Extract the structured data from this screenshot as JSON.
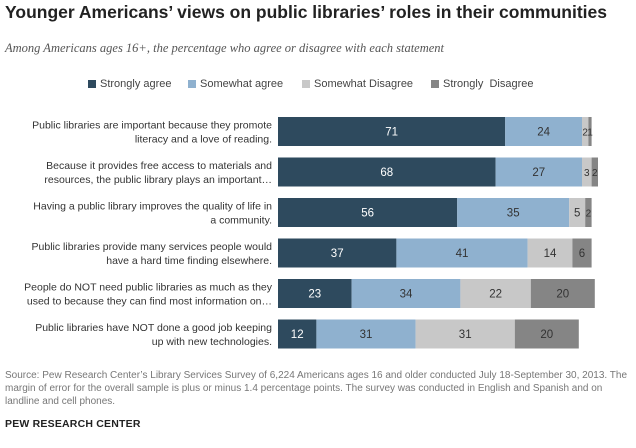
{
  "header": {
    "title": "Younger Americans’ views on public libraries’ roles in their communities",
    "subtitle": "Among Americans ages 16+, the percentage who agree or disagree with each statement"
  },
  "colors": {
    "strongly_agree": "#2e4a5e",
    "somewhat_agree": "#8fb1cf",
    "somewhat_disagree": "#c8c8c8",
    "strongly_disagree": "#858585"
  },
  "chart_data": {
    "type": "bar",
    "orientation": "horizontal",
    "stacked": true,
    "legend_position": "top",
    "categories": [
      [
        "Public libraries are important because they promote",
        "literacy and a love of reading."
      ],
      [
        "Because it provides free access to materials and",
        "resources, the public library plays an important…"
      ],
      [
        "Having a public library improves the quality of life in",
        "a community."
      ],
      [
        "Public libraries provide many services people would",
        "have a hard time finding elsewhere."
      ],
      [
        "People do NOT need public libraries as much as they",
        "used to because they can find most information on…"
      ],
      [
        "Public libraries have NOT done a good job keeping",
        "up with new technologies."
      ]
    ],
    "series": [
      {
        "name": "Strongly agree",
        "color": "#2e4a5e",
        "values": [
          71,
          68,
          56,
          37,
          23,
          12
        ]
      },
      {
        "name": "Somewhat agree",
        "color": "#8fb1cf",
        "values": [
          24,
          27,
          35,
          41,
          34,
          31
        ]
      },
      {
        "name": "Somewhat Disagree",
        "color": "#c8c8c8",
        "values": [
          2,
          3,
          5,
          14,
          22,
          31
        ]
      },
      {
        "name": "Strongly  Disagree",
        "color": "#858585",
        "values": [
          1,
          2,
          2,
          6,
          20,
          20
        ]
      }
    ],
    "xlim": [
      0,
      100
    ]
  },
  "footer": {
    "source": "Source: Pew Research Center’s Library Services Survey of 6,224 Americans ages 16 and older conducted July 18-September 30, 2013. The margin of error for the overall sample is plus or minus 1.4 percentage points. The survey was conducted in English and Spanish and on landline and cell phones.",
    "brand": "PEW RESEARCH CENTER"
  }
}
